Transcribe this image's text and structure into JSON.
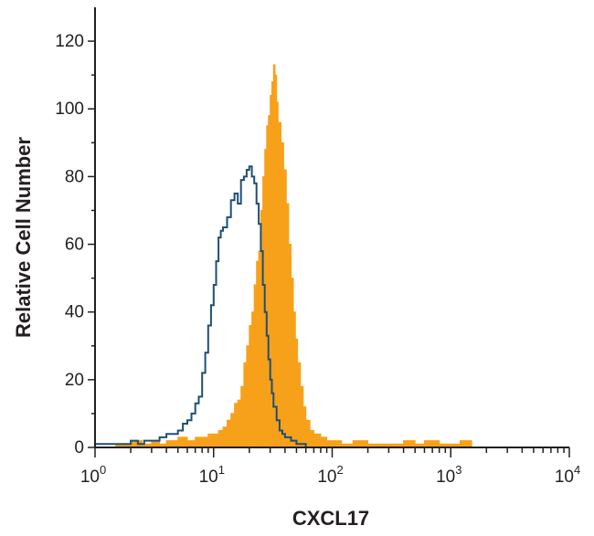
{
  "chart_data": {
    "type": "area",
    "title": "",
    "xlabel": "CXCL17",
    "ylabel": "Relative Cell Number",
    "x_scale": "log",
    "xlim": [
      1,
      10000
    ],
    "ylim": [
      0,
      130
    ],
    "y_ticks": [
      0,
      20,
      40,
      60,
      80,
      100,
      120
    ],
    "x_ticks": [
      {
        "base": "10",
        "exp": "0",
        "value": 1
      },
      {
        "base": "10",
        "exp": "1",
        "value": 10
      },
      {
        "base": "10",
        "exp": "2",
        "value": 100
      },
      {
        "base": "10",
        "exp": "3",
        "value": 1000
      },
      {
        "base": "10",
        "exp": "4",
        "value": 10000
      }
    ],
    "grid": false,
    "legend": "none",
    "series": [
      {
        "style": "filled",
        "color": "#f7a11a",
        "points": [
          [
            1.0,
            0
          ],
          [
            1.5,
            1
          ],
          [
            2.0,
            2
          ],
          [
            2.5,
            1
          ],
          [
            3.0,
            2
          ],
          [
            3.5,
            1
          ],
          [
            4.0,
            2
          ],
          [
            5.0,
            3
          ],
          [
            6.0,
            2
          ],
          [
            7.0,
            3
          ],
          [
            8.0,
            3
          ],
          [
            9.0,
            4
          ],
          [
            10.0,
            4
          ],
          [
            11.0,
            5
          ],
          [
            12.0,
            6
          ],
          [
            13.0,
            8
          ],
          [
            14.0,
            10
          ],
          [
            15.0,
            13
          ],
          [
            16.0,
            14
          ],
          [
            17.0,
            18
          ],
          [
            18.0,
            25
          ],
          [
            19.0,
            30
          ],
          [
            20.0,
            36
          ],
          [
            21.0,
            40
          ],
          [
            22.0,
            48
          ],
          [
            23.0,
            55
          ],
          [
            24.0,
            58
          ],
          [
            25.0,
            70
          ],
          [
            26.0,
            80
          ],
          [
            27.0,
            88
          ],
          [
            28.0,
            95
          ],
          [
            29.0,
            98
          ],
          [
            30.0,
            104
          ],
          [
            31.0,
            108
          ],
          [
            32.0,
            113
          ],
          [
            33.0,
            110
          ],
          [
            34.0,
            102
          ],
          [
            35.0,
            96
          ],
          [
            37.0,
            90
          ],
          [
            39.0,
            82
          ],
          [
            41.0,
            72
          ],
          [
            43.0,
            60
          ],
          [
            45.0,
            50
          ],
          [
            47.0,
            40
          ],
          [
            49.0,
            32
          ],
          [
            51.0,
            25
          ],
          [
            54.0,
            18
          ],
          [
            57.0,
            12
          ],
          [
            60.0,
            8
          ],
          [
            65.0,
            5
          ],
          [
            70.0,
            4
          ],
          [
            80.0,
            3
          ],
          [
            90.0,
            2
          ],
          [
            100.0,
            2
          ],
          [
            120.0,
            1
          ],
          [
            150.0,
            2
          ],
          [
            200.0,
            1
          ],
          [
            300.0,
            1
          ],
          [
            400.0,
            2
          ],
          [
            500.0,
            1
          ],
          [
            600.0,
            2
          ],
          [
            800.0,
            1
          ],
          [
            1000.0,
            1
          ],
          [
            1200.0,
            2
          ],
          [
            1500.0,
            0
          ]
        ]
      },
      {
        "style": "outline",
        "color": "#1e4f74",
        "points": [
          [
            1.0,
            1
          ],
          [
            1.5,
            1
          ],
          [
            2.0,
            2
          ],
          [
            2.3,
            1
          ],
          [
            2.6,
            2
          ],
          [
            3.0,
            2
          ],
          [
            3.5,
            3
          ],
          [
            4.0,
            4
          ],
          [
            4.5,
            4
          ],
          [
            5.0,
            5
          ],
          [
            5.5,
            7
          ],
          [
            6.0,
            8
          ],
          [
            6.5,
            10
          ],
          [
            7.0,
            13
          ],
          [
            7.5,
            15
          ],
          [
            8.0,
            22
          ],
          [
            8.5,
            28
          ],
          [
            9.0,
            36
          ],
          [
            9.5,
            42
          ],
          [
            10.0,
            48
          ],
          [
            10.5,
            55
          ],
          [
            11.0,
            62
          ],
          [
            11.5,
            64
          ],
          [
            12.0,
            65
          ],
          [
            13.0,
            68
          ],
          [
            14.0,
            73
          ],
          [
            15.0,
            75
          ],
          [
            16.0,
            72
          ],
          [
            17.0,
            79
          ],
          [
            18.0,
            80
          ],
          [
            19.0,
            82
          ],
          [
            20.0,
            83
          ],
          [
            21.0,
            80
          ],
          [
            22.0,
            78
          ],
          [
            23.0,
            72
          ],
          [
            24.0,
            66
          ],
          [
            25.0,
            58
          ],
          [
            26.0,
            48
          ],
          [
            27.0,
            40
          ],
          [
            28.0,
            33
          ],
          [
            29.0,
            26
          ],
          [
            30.0,
            20
          ],
          [
            31.0,
            16
          ],
          [
            32.0,
            12
          ],
          [
            34.0,
            8
          ],
          [
            36.0,
            5
          ],
          [
            38.0,
            4
          ],
          [
            40.0,
            3
          ],
          [
            45.0,
            2
          ],
          [
            50.0,
            1
          ],
          [
            55.0,
            1
          ],
          [
            60.0,
            0
          ]
        ]
      }
    ]
  }
}
